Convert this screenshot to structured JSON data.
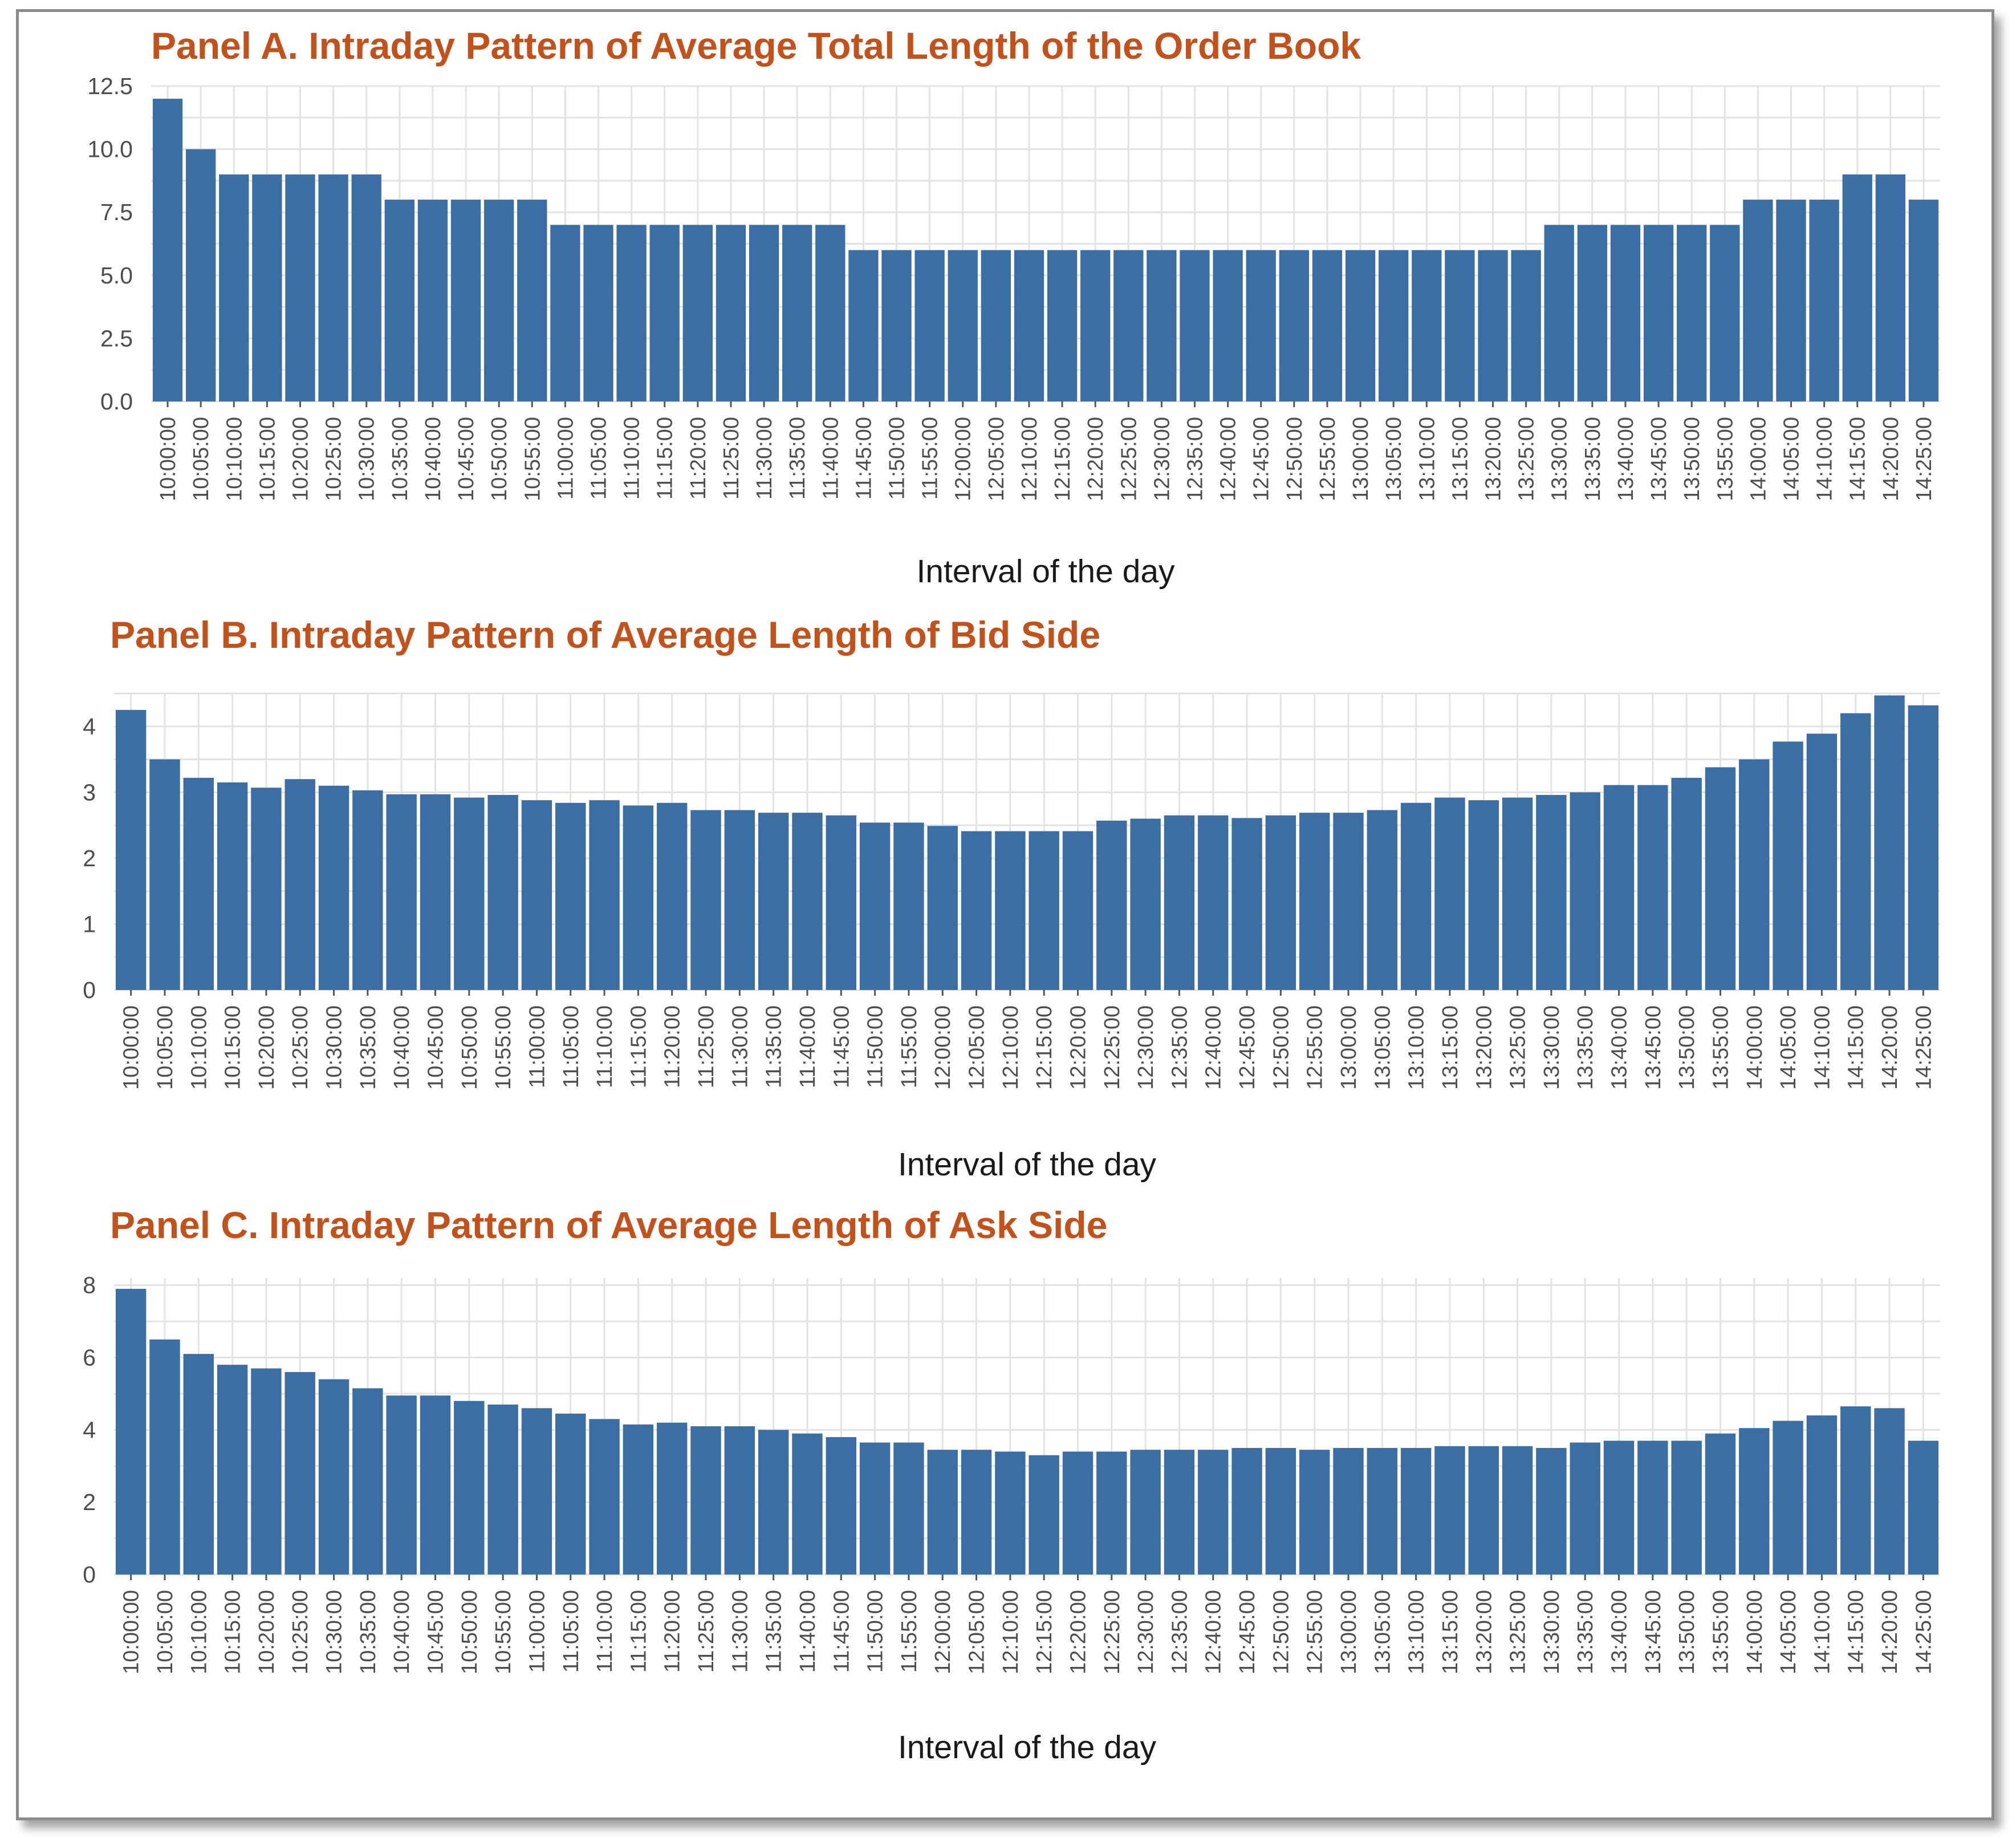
{
  "colors": {
    "bar": "#3b6ea5",
    "title": "#c4501a",
    "grid": "#e3e3e3",
    "panel_bg": "#ffffff"
  },
  "chart_data": [
    {
      "type": "bar",
      "title": "Panel A. Intraday Pattern of Average Total Length of the Order Book",
      "xlabel": "Interval of the day",
      "ylabel": "",
      "ylim": [
        0,
        12.5
      ],
      "yticks": [
        "0.0",
        "2.5",
        "5.0",
        "7.5",
        "10.0",
        "12.5"
      ],
      "grid": true,
      "categories": [
        "10:00:00",
        "10:05:00",
        "10:10:00",
        "10:15:00",
        "10:20:00",
        "10:25:00",
        "10:30:00",
        "10:35:00",
        "10:40:00",
        "10:45:00",
        "10:50:00",
        "10:55:00",
        "11:00:00",
        "11:05:00",
        "11:10:00",
        "11:15:00",
        "11:20:00",
        "11:25:00",
        "11:30:00",
        "11:35:00",
        "11:40:00",
        "11:45:00",
        "11:50:00",
        "11:55:00",
        "12:00:00",
        "12:05:00",
        "12:10:00",
        "12:15:00",
        "12:20:00",
        "12:25:00",
        "12:30:00",
        "12:35:00",
        "12:40:00",
        "12:45:00",
        "12:50:00",
        "12:55:00",
        "13:00:00",
        "13:05:00",
        "13:10:00",
        "13:15:00",
        "13:20:00",
        "13:25:00",
        "13:30:00",
        "13:35:00",
        "13:40:00",
        "13:45:00",
        "13:50:00",
        "13:55:00",
        "14:00:00",
        "14:05:00",
        "14:10:00",
        "14:15:00",
        "14:20:00",
        "14:25:00"
      ],
      "values": [
        12,
        10,
        9,
        9,
        9,
        9,
        9,
        8,
        8,
        8,
        8,
        8,
        7,
        7,
        7,
        7,
        7,
        7,
        7,
        7,
        7,
        6,
        6,
        6,
        6,
        6,
        6,
        6,
        6,
        6,
        6,
        6,
        6,
        6,
        6,
        6,
        6,
        6,
        6,
        6,
        6,
        6,
        7,
        7,
        7,
        7,
        7,
        7,
        8,
        8,
        8,
        9,
        9,
        8
      ]
    },
    {
      "type": "bar",
      "title": "Panel B. Intraday Pattern of Average Length of Bid Side",
      "xlabel": "Interval of the day",
      "ylabel": "",
      "ylim": [
        0,
        4.5
      ],
      "yticks": [
        "0",
        "1",
        "2",
        "3",
        "4"
      ],
      "grid": true,
      "categories": [
        "10:00:00",
        "10:05:00",
        "10:10:00",
        "10:15:00",
        "10:20:00",
        "10:25:00",
        "10:30:00",
        "10:35:00",
        "10:40:00",
        "10:45:00",
        "10:50:00",
        "10:55:00",
        "11:00:00",
        "11:05:00",
        "11:10:00",
        "11:15:00",
        "11:20:00",
        "11:25:00",
        "11:30:00",
        "11:35:00",
        "11:40:00",
        "11:45:00",
        "11:50:00",
        "11:55:00",
        "12:00:00",
        "12:05:00",
        "12:10:00",
        "12:15:00",
        "12:20:00",
        "12:25:00",
        "12:30:00",
        "12:35:00",
        "12:40:00",
        "12:45:00",
        "12:50:00",
        "12:55:00",
        "13:00:00",
        "13:05:00",
        "13:10:00",
        "13:15:00",
        "13:20:00",
        "13:25:00",
        "13:30:00",
        "13:35:00",
        "13:40:00",
        "13:45:00",
        "13:50:00",
        "13:55:00",
        "14:00:00",
        "14:05:00",
        "14:10:00",
        "14:15:00",
        "14:20:00",
        "14:25:00"
      ],
      "values": [
        4.25,
        3.5,
        3.22,
        3.15,
        3.07,
        3.2,
        3.1,
        3.03,
        2.97,
        2.97,
        2.92,
        2.96,
        2.88,
        2.84,
        2.88,
        2.8,
        2.84,
        2.73,
        2.73,
        2.69,
        2.69,
        2.65,
        2.54,
        2.54,
        2.49,
        2.41,
        2.41,
        2.41,
        2.41,
        2.57,
        2.6,
        2.65,
        2.65,
        2.61,
        2.65,
        2.69,
        2.69,
        2.73,
        2.84,
        2.92,
        2.88,
        2.92,
        2.96,
        3.0,
        3.11,
        3.11,
        3.22,
        3.38,
        3.5,
        3.77,
        3.89,
        4.2,
        4.47,
        4.32
      ]
    },
    {
      "type": "bar",
      "title": "Panel C. Intraday Pattern of Average Length of Ask Side",
      "xlabel": "Interval of the day",
      "ylabel": "",
      "ylim": [
        0,
        8.2
      ],
      "yticks": [
        "0",
        "2",
        "4",
        "6",
        "8"
      ],
      "grid": true,
      "categories": [
        "10:00:00",
        "10:05:00",
        "10:10:00",
        "10:15:00",
        "10:20:00",
        "10:25:00",
        "10:30:00",
        "10:35:00",
        "10:40:00",
        "10:45:00",
        "10:50:00",
        "10:55:00",
        "11:00:00",
        "11:05:00",
        "11:10:00",
        "11:15:00",
        "11:20:00",
        "11:25:00",
        "11:30:00",
        "11:35:00",
        "11:40:00",
        "11:45:00",
        "11:50:00",
        "11:55:00",
        "12:00:00",
        "12:05:00",
        "12:10:00",
        "12:15:00",
        "12:20:00",
        "12:25:00",
        "12:30:00",
        "12:35:00",
        "12:40:00",
        "12:45:00",
        "12:50:00",
        "12:55:00",
        "13:00:00",
        "13:05:00",
        "13:10:00",
        "13:15:00",
        "13:20:00",
        "13:25:00",
        "13:30:00",
        "13:35:00",
        "13:40:00",
        "13:45:00",
        "13:50:00",
        "13:55:00",
        "14:00:00",
        "14:05:00",
        "14:10:00",
        "14:15:00",
        "14:20:00",
        "14:25:00"
      ],
      "values": [
        7.9,
        6.5,
        6.1,
        5.8,
        5.7,
        5.6,
        5.4,
        5.15,
        4.95,
        4.95,
        4.8,
        4.7,
        4.6,
        4.45,
        4.3,
        4.15,
        4.2,
        4.1,
        4.1,
        4.0,
        3.9,
        3.8,
        3.65,
        3.65,
        3.45,
        3.45,
        3.4,
        3.3,
        3.4,
        3.4,
        3.45,
        3.45,
        3.45,
        3.5,
        3.5,
        3.45,
        3.5,
        3.5,
        3.5,
        3.55,
        3.55,
        3.55,
        3.5,
        3.65,
        3.7,
        3.7,
        3.7,
        3.9,
        4.05,
        4.25,
        4.4,
        4.65,
        4.6,
        3.7
      ]
    }
  ]
}
